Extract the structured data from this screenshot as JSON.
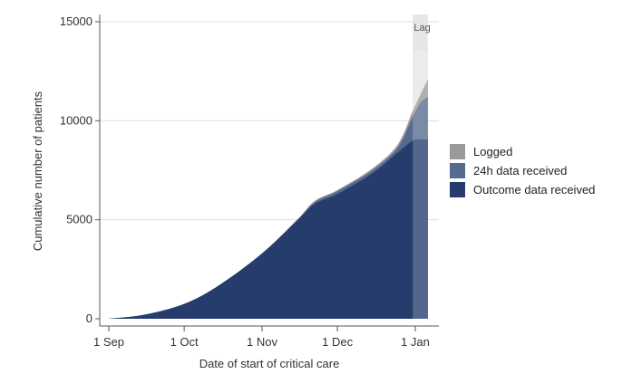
{
  "chart_data": {
    "type": "area",
    "title": "",
    "xlabel": "Date of start of critical care",
    "ylabel": "Cumulative number of patients",
    "x_ticks": [
      "1 Sep",
      "1 Oct",
      "1 Nov",
      "1 Dec",
      "1 Jan"
    ],
    "y_ticks": [
      0,
      5000,
      10000,
      15000
    ],
    "ylim": [
      0,
      15000
    ],
    "grid": "horizontal",
    "legend_position": "right",
    "lag_label": "Lag",
    "lag_range": [
      "2020-12-31",
      "2021-01-06"
    ],
    "x": [
      "2020-09-01",
      "2020-09-15",
      "2020-10-01",
      "2020-10-15",
      "2020-11-01",
      "2020-11-15",
      "2020-11-22",
      "2020-12-01",
      "2020-12-15",
      "2020-12-25",
      "2020-12-31",
      "2021-01-03",
      "2021-01-06"
    ],
    "series": [
      {
        "name": "Logged",
        "color": "#9a9a9a",
        "values": [
          0,
          200,
          750,
          1700,
          3300,
          5000,
          5950,
          6500,
          7600,
          8800,
          10500,
          11300,
          12100
        ]
      },
      {
        "name": "24h data received",
        "color": "#56698f",
        "values": [
          0,
          200,
          750,
          1700,
          3300,
          5000,
          5900,
          6450,
          7500,
          8650,
          10200,
          10900,
          11200
        ]
      },
      {
        "name": "Outcome data received",
        "color": "#253c6c",
        "values": [
          0,
          200,
          750,
          1700,
          3300,
          4950,
          5800,
          6300,
          7350,
          8400,
          9000,
          9050,
          9050
        ]
      }
    ]
  }
}
